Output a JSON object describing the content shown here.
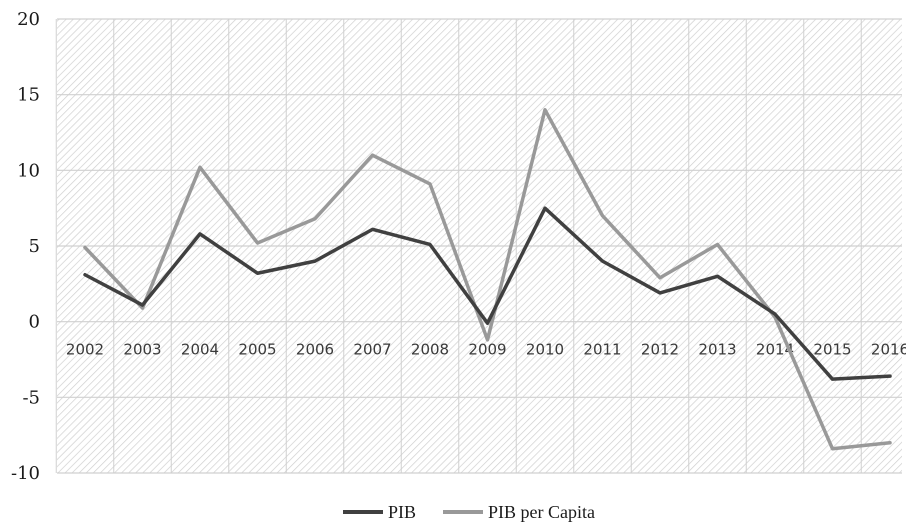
{
  "colors": {
    "pib": "#404040",
    "pib_per_capita": "#999999",
    "grid": "#d0d0d0",
    "hatch": "#cfcfcf"
  },
  "chart_data": {
    "type": "line",
    "title": "",
    "xlabel": "",
    "ylabel": "",
    "categories": [
      "2002",
      "2003",
      "2004",
      "2005",
      "2006",
      "2007",
      "2008",
      "2009",
      "2010",
      "2011",
      "2012",
      "2013",
      "2014",
      "2015",
      "2016"
    ],
    "ylim": [
      -10,
      20
    ],
    "yticks": [
      -10,
      -5,
      0,
      5,
      10,
      15,
      20
    ],
    "ytick_labels": [
      "-10",
      "-5",
      "0",
      "5",
      "10",
      "15",
      "20"
    ],
    "grid": true,
    "legend_position": "bottom",
    "series": [
      {
        "name": "PIB",
        "color": "#404040",
        "values": [
          3.1,
          1.1,
          5.8,
          3.2,
          4.0,
          6.1,
          5.1,
          -0.1,
          7.5,
          4.0,
          1.9,
          3.0,
          0.5,
          -3.8,
          -3.6
        ]
      },
      {
        "name": "PIB per Capita",
        "color": "#999999",
        "values": [
          4.9,
          0.9,
          10.2,
          5.2,
          6.8,
          11.0,
          9.1,
          -1.2,
          14.0,
          7.0,
          2.9,
          5.1,
          0.3,
          -8.4,
          -8.0
        ]
      }
    ]
  }
}
